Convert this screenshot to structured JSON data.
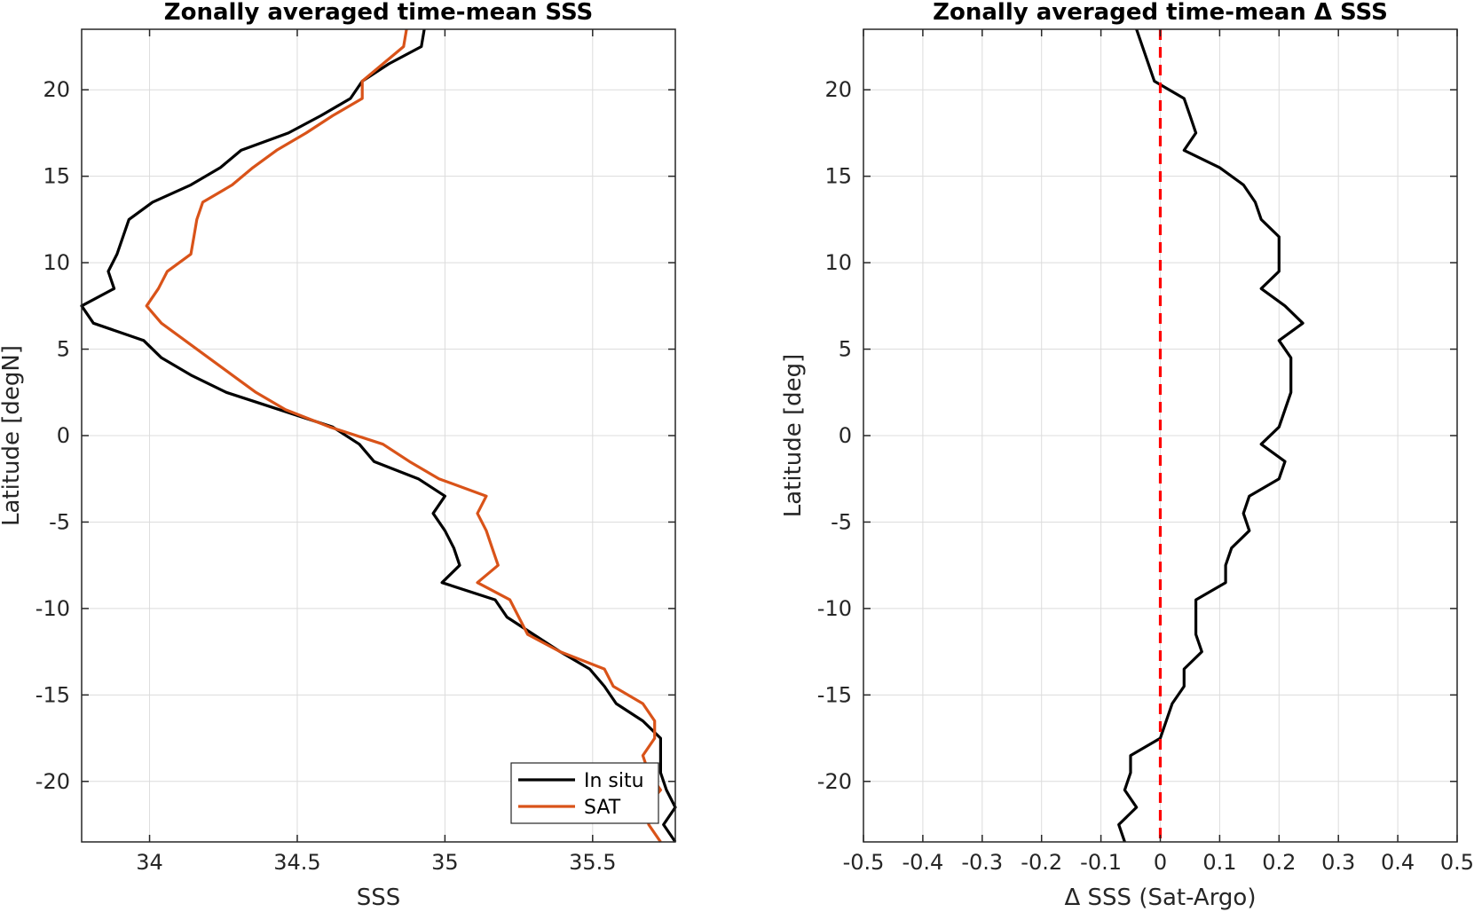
{
  "chart_data": [
    {
      "type": "line",
      "title": "Zonally averaged time-mean SSS",
      "xlabel": "SSS",
      "ylabel": "Latitude [degN]",
      "xlim": [
        33.77,
        35.78
      ],
      "ylim": [
        -23.5,
        23.5
      ],
      "xticks": [
        34,
        34.5,
        35,
        35.5
      ],
      "xtick_labels": [
        "34",
        "34.5",
        "35",
        "35.5"
      ],
      "yticks": [
        20,
        15,
        10,
        5,
        0,
        -5,
        -10,
        -15,
        -20
      ],
      "ytick_labels": [
        "20",
        "15",
        "10",
        "5",
        "0",
        "-5",
        "-10",
        "-15",
        "-20"
      ],
      "grid": true,
      "legend": "bottom-right",
      "series": [
        {
          "name": "In situ",
          "color": "#000000",
          "points": [
            [
              34.93,
              23.5
            ],
            [
              34.92,
              22.5
            ],
            [
              34.81,
              21.5
            ],
            [
              34.72,
              20.5
            ],
            [
              34.68,
              19.5
            ],
            [
              34.58,
              18.5
            ],
            [
              34.47,
              17.5
            ],
            [
              34.31,
              16.5
            ],
            [
              34.24,
              15.5
            ],
            [
              34.14,
              14.5
            ],
            [
              34.01,
              13.5
            ],
            [
              33.93,
              12.5
            ],
            [
              33.91,
              11.5
            ],
            [
              33.89,
              10.5
            ],
            [
              33.86,
              9.5
            ],
            [
              33.88,
              8.5
            ],
            [
              33.77,
              7.5
            ],
            [
              33.81,
              6.5
            ],
            [
              33.98,
              5.5
            ],
            [
              34.04,
              4.5
            ],
            [
              34.14,
              3.5
            ],
            [
              34.26,
              2.5
            ],
            [
              34.44,
              1.5
            ],
            [
              34.62,
              0.5
            ],
            [
              34.71,
              -0.5
            ],
            [
              34.76,
              -1.5
            ],
            [
              34.91,
              -2.5
            ],
            [
              35.0,
              -3.5
            ],
            [
              34.96,
              -4.5
            ],
            [
              35.0,
              -5.5
            ],
            [
              35.03,
              -6.5
            ],
            [
              35.05,
              -7.5
            ],
            [
              34.99,
              -8.5
            ],
            [
              35.17,
              -9.5
            ],
            [
              35.21,
              -10.5
            ],
            [
              35.3,
              -11.5
            ],
            [
              35.39,
              -12.5
            ],
            [
              35.49,
              -13.5
            ],
            [
              35.54,
              -14.5
            ],
            [
              35.58,
              -15.5
            ],
            [
              35.67,
              -16.5
            ],
            [
              35.73,
              -17.5
            ],
            [
              35.73,
              -18.5
            ],
            [
              35.73,
              -19.5
            ],
            [
              35.75,
              -20.5
            ],
            [
              35.78,
              -21.5
            ],
            [
              35.74,
              -22.5
            ],
            [
              35.78,
              -23.5
            ]
          ]
        },
        {
          "name": "SAT",
          "color": "#d95319",
          "points": [
            [
              34.87,
              23.5
            ],
            [
              34.86,
              22.5
            ],
            [
              34.79,
              21.5
            ],
            [
              34.72,
              20.5
            ],
            [
              34.72,
              19.5
            ],
            [
              34.62,
              18.5
            ],
            [
              34.53,
              17.5
            ],
            [
              34.43,
              16.5
            ],
            [
              34.35,
              15.5
            ],
            [
              34.28,
              14.5
            ],
            [
              34.18,
              13.5
            ],
            [
              34.16,
              12.5
            ],
            [
              34.15,
              11.5
            ],
            [
              34.14,
              10.5
            ],
            [
              34.06,
              9.5
            ],
            [
              34.03,
              8.5
            ],
            [
              33.99,
              7.5
            ],
            [
              34.04,
              6.5
            ],
            [
              34.12,
              5.5
            ],
            [
              34.2,
              4.5
            ],
            [
              34.28,
              3.5
            ],
            [
              34.36,
              2.5
            ],
            [
              34.46,
              1.5
            ],
            [
              34.61,
              0.5
            ],
            [
              34.79,
              -0.5
            ],
            [
              34.88,
              -1.5
            ],
            [
              34.98,
              -2.5
            ],
            [
              35.14,
              -3.5
            ],
            [
              35.11,
              -4.5
            ],
            [
              35.14,
              -5.5
            ],
            [
              35.16,
              -6.5
            ],
            [
              35.18,
              -7.5
            ],
            [
              35.11,
              -8.5
            ],
            [
              35.22,
              -9.5
            ],
            [
              35.25,
              -10.5
            ],
            [
              35.28,
              -11.5
            ],
            [
              35.39,
              -12.5
            ],
            [
              35.54,
              -13.5
            ],
            [
              35.57,
              -14.5
            ],
            [
              35.67,
              -15.5
            ],
            [
              35.71,
              -16.5
            ],
            [
              35.71,
              -17.5
            ],
            [
              35.67,
              -18.5
            ],
            [
              35.69,
              -19.5
            ],
            [
              35.73,
              -20.5
            ],
            [
              35.68,
              -21.5
            ],
            [
              35.69,
              -22.5
            ],
            [
              35.73,
              -23.5
            ]
          ]
        }
      ]
    },
    {
      "type": "line",
      "title": "Zonally averaged time-mean Δ SSS",
      "xlabel": "Δ SSS (Sat-Argo)",
      "ylabel": "Latitude [deg]",
      "xlim": [
        -0.5,
        0.5
      ],
      "ylim": [
        -23.5,
        23.5
      ],
      "xticks": [
        -0.5,
        -0.4,
        -0.3,
        -0.2,
        -0.1,
        0,
        0.1,
        0.2,
        0.3,
        0.4,
        0.5
      ],
      "xtick_labels": [
        "-0.5",
        "-0.4",
        "-0.3",
        "-0.2",
        "-0.1",
        "0",
        "0.1",
        "0.2",
        "0.3",
        "0.4",
        "0.5"
      ],
      "yticks": [
        20,
        15,
        10,
        5,
        0,
        -5,
        -10,
        -15,
        -20
      ],
      "ytick_labels": [
        "20",
        "15",
        "10",
        "5",
        "0",
        "-5",
        "-10",
        "-15",
        "-20"
      ],
      "grid": true,
      "reference_line": {
        "x": 0,
        "color": "#ff0000",
        "style": "dashed"
      },
      "series": [
        {
          "color": "#000000",
          "points": [
            [
              -0.04,
              23.5
            ],
            [
              -0.03,
              22.5
            ],
            [
              -0.02,
              21.5
            ],
            [
              -0.01,
              20.5
            ],
            [
              0.04,
              19.5
            ],
            [
              0.05,
              18.5
            ],
            [
              0.06,
              17.5
            ],
            [
              0.04,
              16.5
            ],
            [
              0.1,
              15.5
            ],
            [
              0.14,
              14.5
            ],
            [
              0.16,
              13.5
            ],
            [
              0.17,
              12.5
            ],
            [
              0.2,
              11.5
            ],
            [
              0.2,
              10.5
            ],
            [
              0.2,
              9.5
            ],
            [
              0.17,
              8.5
            ],
            [
              0.21,
              7.5
            ],
            [
              0.24,
              6.5
            ],
            [
              0.2,
              5.5
            ],
            [
              0.22,
              4.5
            ],
            [
              0.22,
              3.5
            ],
            [
              0.22,
              2.5
            ],
            [
              0.21,
              1.5
            ],
            [
              0.2,
              0.5
            ],
            [
              0.17,
              -0.5
            ],
            [
              0.21,
              -1.5
            ],
            [
              0.2,
              -2.5
            ],
            [
              0.15,
              -3.5
            ],
            [
              0.14,
              -4.5
            ],
            [
              0.15,
              -5.5
            ],
            [
              0.12,
              -6.5
            ],
            [
              0.11,
              -7.5
            ],
            [
              0.11,
              -8.5
            ],
            [
              0.06,
              -9.5
            ],
            [
              0.06,
              -10.5
            ],
            [
              0.06,
              -11.5
            ],
            [
              0.07,
              -12.5
            ],
            [
              0.04,
              -13.5
            ],
            [
              0.04,
              -14.5
            ],
            [
              0.02,
              -15.5
            ],
            [
              0.01,
              -16.5
            ],
            [
              0.0,
              -17.5
            ],
            [
              -0.05,
              -18.5
            ],
            [
              -0.05,
              -19.5
            ],
            [
              -0.06,
              -20.5
            ],
            [
              -0.04,
              -21.5
            ],
            [
              -0.07,
              -22.5
            ],
            [
              -0.06,
              -23.5
            ]
          ]
        }
      ]
    }
  ]
}
